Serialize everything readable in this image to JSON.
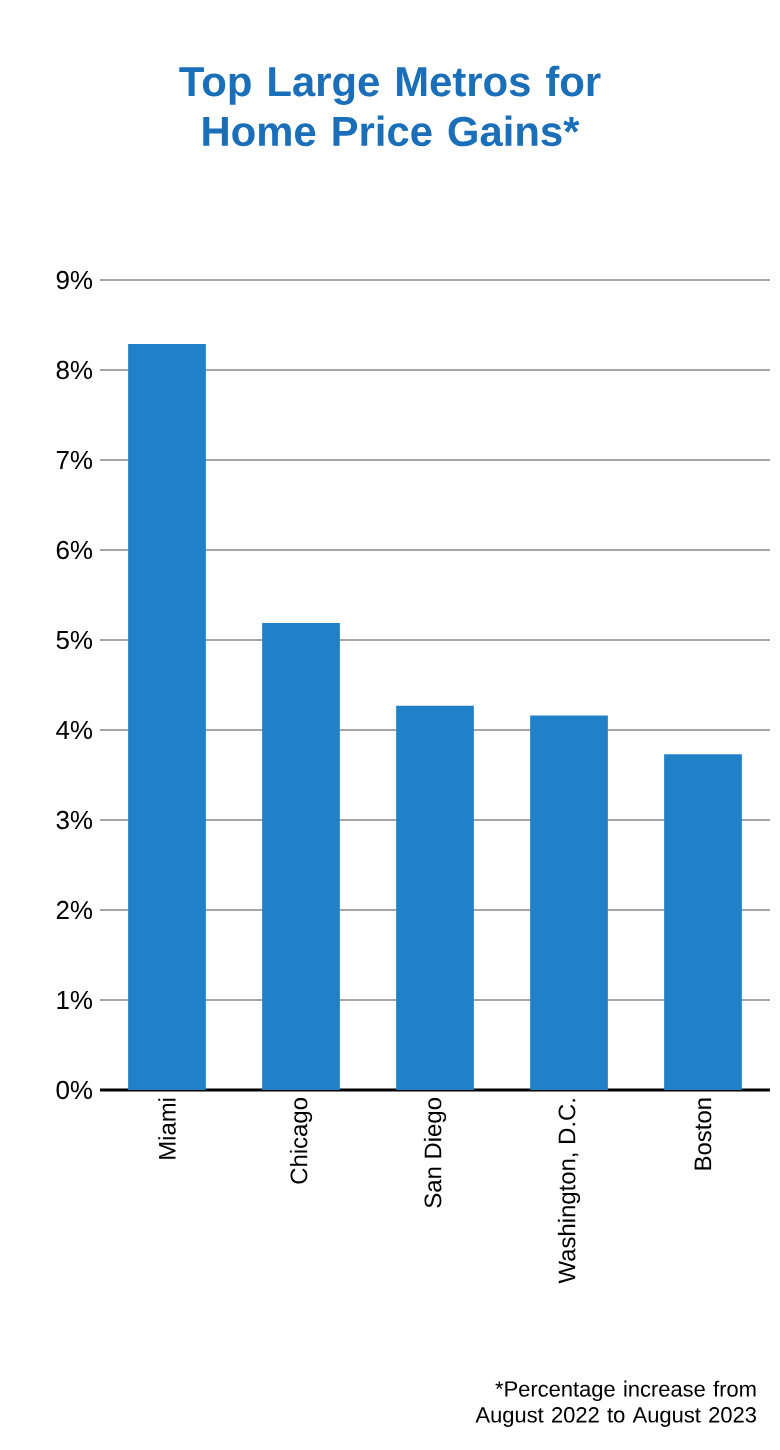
{
  "chart_data": {
    "type": "bar",
    "title": "Top Large Metros for Home Price Gains*",
    "categories": [
      "Miami",
      "Chicago",
      "San Diego",
      "Washington, D.C.",
      "Boston"
    ],
    "values": [
      8.29,
      5.19,
      4.27,
      4.16,
      3.73
    ],
    "color": "#2181c8",
    "ylim": [
      0,
      9
    ],
    "yticks": [
      {
        "value": 0,
        "label": "0%"
      },
      {
        "value": 1,
        "label": "1%"
      },
      {
        "value": 2,
        "label": "2%"
      },
      {
        "value": 3,
        "label": "3%"
      },
      {
        "value": 4,
        "label": "4%"
      },
      {
        "value": 5,
        "label": "5%"
      },
      {
        "value": 6,
        "label": "6%"
      },
      {
        "value": 7,
        "label": "7%"
      },
      {
        "value": 8,
        "label": "8%"
      },
      {
        "value": 9,
        "label": "9%"
      }
    ],
    "grid": "y",
    "annotations": [
      "*Percentage increase from August 2022 to August 2023"
    ]
  }
}
